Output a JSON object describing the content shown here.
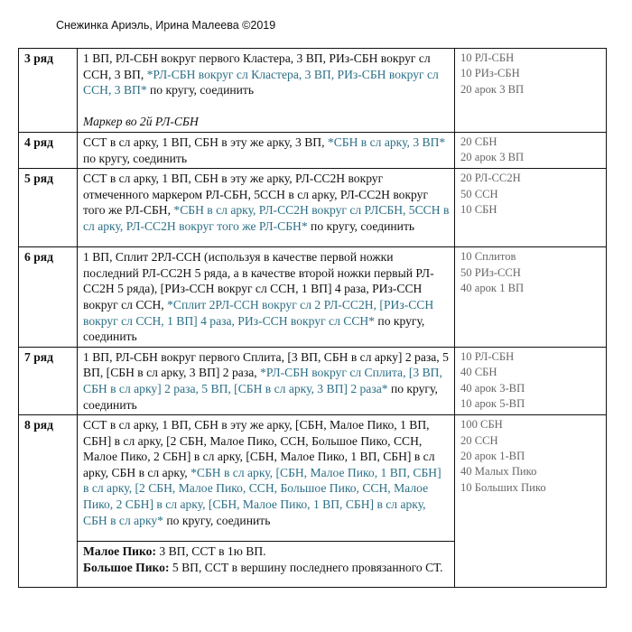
{
  "header": {
    "title": "Снежинка Ариэль, Ирина Малеева ©2019"
  },
  "colors": {
    "text": "#111111",
    "repeat_highlight": "#2c6f86",
    "counts": "#666666"
  },
  "rows": [
    {
      "label": "3 ряд",
      "segments": [
        {
          "t": "1 ВП, РЛ-СБН вокруг первого Кластера, 3 ВП, РИз-СБН вокруг сл ССН, 3 ВП, "
        },
        {
          "t": "*РЛ-СБН вокруг сл Кластера, 3 ВП, РИз-СБН вокруг сл ССН, 3 ВП*",
          "c": "teal"
        },
        {
          "t": " по кругу, соединить"
        }
      ],
      "note": "Маркер во 2й РЛ-СБН",
      "counts": [
        "10 РЛ-СБН",
        "10 РИз-СБН",
        "20 арок 3 ВП"
      ]
    },
    {
      "label": "4 ряд",
      "segments": [
        {
          "t": "ССТ в сл арку, 1 ВП, СБН в эту же арку, 3 ВП, "
        },
        {
          "t": "*СБН в сл арку, 3 ВП*",
          "c": "teal"
        },
        {
          "t": " по кругу, соединить"
        }
      ],
      "counts": [
        "20 СБН",
        "20 арок 3 ВП"
      ]
    },
    {
      "label": "5 ряд",
      "segments": [
        {
          "t": "ССТ в сл арку, 1 ВП, СБН в эту же арку, РЛ-СС2Н вокруг отмеченного маркером РЛ-СБН, 5ССН в сл арку, РЛ-СС2Н вокруг того же РЛ-СБН, "
        },
        {
          "t": "*СБН в сл арку, РЛ-СС2Н вокруг сл РЛСБН, 5ССН в сл арку, РЛ-СС2Н вокруг того же РЛ-СБН*",
          "c": "teal"
        },
        {
          "t": " по кругу, соединить"
        }
      ],
      "counts": [
        "20 РЛ-СС2Н",
        "50 ССН",
        "10 СБН"
      ]
    },
    {
      "label": "6 ряд",
      "segments": [
        {
          "t": "1 ВП, Сплит 2РЛ-ССН (используя в качестве первой ножки последний РЛ-СС2Н 5 ряда, а в качестве второй ножки первый РЛ-СС2Н 5 ряда), [РИз-ССН вокруг сл ССН, 1 ВП] 4 раза, РИз-ССН вокруг сл ССН, "
        },
        {
          "t": "*Сплит 2РЛ-ССН вокруг сл 2 РЛ-СС2Н, [РИз-ССН вокруг сл ССН, 1 ВП] 4 раза, РИз-ССН вокруг сл ССН*",
          "c": "teal"
        },
        {
          "t": " по кругу, соединить"
        }
      ],
      "counts": [
        "10 Сплитов",
        "50 РИз-ССН",
        "40 арок 1 ВП"
      ]
    },
    {
      "label": "7 ряд",
      "segments": [
        {
          "t": "1 ВП, РЛ-СБН вокруг первого Сплита, [3 ВП, СБН в сл арку] 2 раза, 5 ВП, [СБН в сл арку, 3 ВП] 2 раза, "
        },
        {
          "t": "*РЛ-СБН вокруг сл Сплита, [3 ВП, СБН в сл арку] 2 раза, 5 ВП, [СБН в сл арку, 3 ВП] 2 раза*",
          "c": "teal"
        },
        {
          "t": " по кругу, соединить"
        }
      ],
      "counts": [
        "10 РЛ-СБН",
        "40 СБН",
        "40 арок 3-ВП",
        "10 арок 5-ВП"
      ]
    },
    {
      "label": "8 ряд",
      "segments": [
        {
          "t": "ССТ в сл арку, 1 ВП, СБН в эту же арку, [СБН, Малое Пико, 1 ВП, СБН] в сл арку, [2 СБН, Малое Пико, ССН, Большое Пико, ССН, Малое Пико, 2 СБН] в сл арку, [СБН, Малое Пико, 1 ВП, СБН] в сл арку, СБН в сл арку, "
        },
        {
          "t": "*СБН в сл арку, [СБН, Малое Пико, 1 ВП, СБН] в сл арку, [2 СБН, Малое Пико, ССН, Большое Пико, ССН, Малое Пико, 2 СБН] в сл арку, [СБН, Малое Пико, 1 ВП, СБН] в сл арку, СБН в сл арку*",
          "c": "teal"
        },
        {
          "t": " по кругу, соединить"
        }
      ],
      "counts": [
        "100 СБН",
        "20 ССН",
        "20 арок 1-ВП",
        "40 Малых Пико",
        "10 Больших Пико"
      ]
    }
  ],
  "definitions": [
    {
      "term": "Малое Пико:",
      "text": " 3 ВП, ССТ в 1ю ВП."
    },
    {
      "term": "Большое Пико:",
      "text": " 5 ВП, ССТ в вершину последнего провязанного СТ."
    }
  ]
}
